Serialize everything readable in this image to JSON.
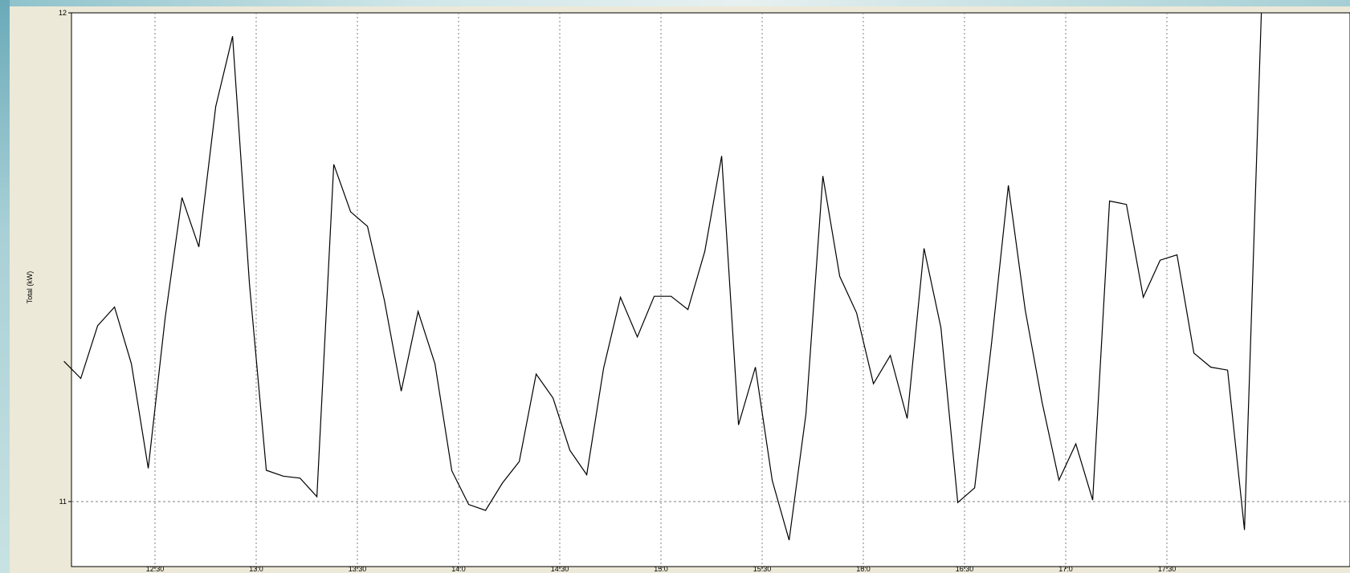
{
  "chart_data": {
    "type": "line",
    "title": "",
    "xlabel": "",
    "ylabel": "Total (kW)",
    "ylim": [
      10.92,
      12.0
    ],
    "y_ticks": [
      {
        "value": 12,
        "label": "12"
      },
      {
        "value": 11,
        "label": "11"
      }
    ],
    "grid": true,
    "x_ticks": [
      "12:30",
      "13:0",
      "13:30",
      "14:0",
      "14:30",
      "15:0",
      "15:30",
      "16:0",
      "16:30",
      "17:0",
      "17:30"
    ],
    "series": [
      {
        "color": "#000000",
        "x": [
          "12:03",
          "12:08",
          "12:13",
          "12:18",
          "12:23",
          "12:28",
          "12:33",
          "12:38",
          "12:43",
          "12:48",
          "12:53",
          "12:58",
          "13:03",
          "13:08",
          "13:13",
          "13:18",
          "13:23",
          "13:28",
          "13:33",
          "13:38",
          "13:43",
          "13:48",
          "13:53",
          "13:58",
          "14:03",
          "14:08",
          "14:13",
          "14:18",
          "14:23",
          "14:28",
          "14:33",
          "14:38",
          "14:43",
          "14:48",
          "14:53",
          "14:58",
          "15:03",
          "15:08",
          "15:13",
          "15:18",
          "15:23",
          "15:28",
          "15:33",
          "15:38",
          "15:43",
          "15:48",
          "15:53",
          "15:58",
          "16:03",
          "16:08",
          "16:13",
          "16:18",
          "16:23",
          "16:28",
          "16:33",
          "16:38",
          "16:43",
          "16:48",
          "16:53",
          "16:58",
          "17:03",
          "17:08",
          "17:13",
          "17:18",
          "17:23",
          "17:28",
          "17:33",
          "17:38",
          "17:43",
          "17:48",
          "17:53",
          "17:58"
        ],
        "values": [
          11.287,
          11.252,
          11.36,
          11.398,
          11.282,
          11.068,
          11.375,
          11.622,
          11.521,
          11.808,
          11.952,
          11.446,
          11.064,
          11.052,
          11.048,
          11.01,
          11.69,
          11.593,
          11.563,
          11.412,
          11.226,
          11.389,
          11.282,
          11.063,
          10.994,
          10.982,
          11.038,
          11.082,
          11.261,
          11.212,
          11.105,
          11.055,
          11.273,
          11.418,
          11.337,
          11.42,
          11.42,
          11.393,
          11.512,
          11.707,
          11.157,
          11.275,
          11.043,
          10.921,
          11.18,
          11.666,
          11.461,
          11.386,
          11.241,
          11.299,
          11.17,
          11.518,
          11.356,
          10.998,
          11.028,
          11.323,
          11.647,
          11.392,
          11.203,
          11.044,
          11.118,
          11.003,
          11.615,
          11.608,
          11.418,
          11.494,
          11.505,
          11.304,
          11.275,
          11.269,
          10.942,
          12.0
        ]
      }
    ]
  }
}
